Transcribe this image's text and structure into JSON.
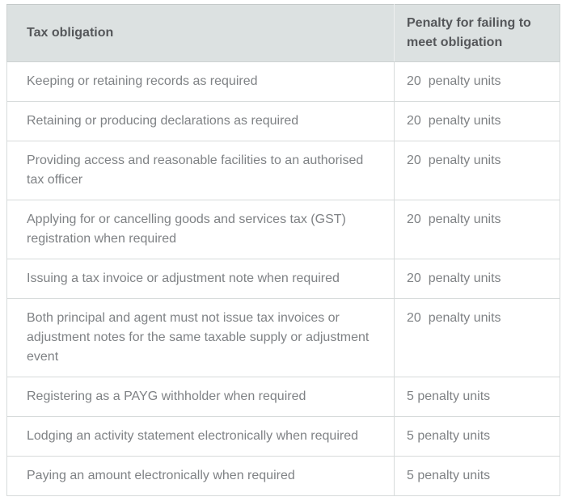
{
  "colors": {
    "header_bg": "#dce1e1",
    "header_text": "#55575a",
    "body_text": "#7f8285",
    "row_border": "#d7dbdb",
    "top_border": "#c5caca",
    "page_bg": "#ffffff"
  },
  "table": {
    "columns": [
      {
        "label": "Tax obligation"
      },
      {
        "label": "Penalty for failing to meet obligation"
      }
    ],
    "rows": [
      {
        "obligation": "Keeping or retaining records as required",
        "penalty": "20  penalty units"
      },
      {
        "obligation": "Retaining or producing declarations as required",
        "penalty": "20  penalty units"
      },
      {
        "obligation": "Providing access and reasonable facilities to an authorised tax officer",
        "penalty": "20  penalty units"
      },
      {
        "obligation": "Applying for or cancelling goods and services tax (GST) registration when required",
        "penalty": "20  penalty units"
      },
      {
        "obligation": "Issuing a tax invoice or adjustment note when required",
        "penalty": "20  penalty units"
      },
      {
        "obligation": "Both principal and agent must not issue tax invoices or adjustment notes for the same taxable supply or adjustment event",
        "penalty": "20  penalty units"
      },
      {
        "obligation": "Registering as a PAYG withholder when required",
        "penalty": "5 penalty units"
      },
      {
        "obligation": "Lodging an activity statement electronically when required",
        "penalty": "5 penalty units"
      },
      {
        "obligation": "Paying an amount electronically when required",
        "penalty": "5 penalty units"
      }
    ]
  }
}
